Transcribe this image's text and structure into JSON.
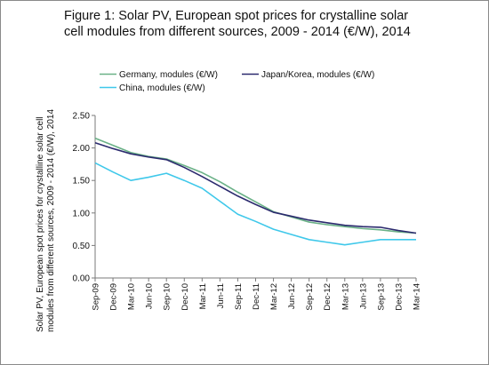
{
  "chart_data": {
    "type": "line",
    "title_lines": [
      "Figure 1: Solar PV, European spot prices for crystalline solar",
      "cell modules from different sources, 2009 - 2014 (€/W), 2014"
    ],
    "ylabel_lines": [
      "Solar PV, European spot prices for crystalline solar cell",
      "modules from different sources, 2009 - 2014 (€/W), 2014"
    ],
    "categories": [
      "Sep-09",
      "Dec-09",
      "Mar-10",
      "Jun-10",
      "Sep-10",
      "Dec-10",
      "Mar-11",
      "Jun-11",
      "Sep-11",
      "Dec-11",
      "Mar-12",
      "Jun-12",
      "Sep-12",
      "Dec-12",
      "Mar-13",
      "Jun-13",
      "Sep-13",
      "Dec-13",
      "Mar-14"
    ],
    "ylim": [
      0,
      2.5
    ],
    "yticks": [
      "0.00",
      "0.50",
      "1.00",
      "1.50",
      "2.00",
      "2.50"
    ],
    "grid": false,
    "legend_position": "top",
    "series": [
      {
        "name": "Germany, modules (€/W)",
        "color": "#6ab187",
        "values": [
          2.15,
          2.04,
          1.93,
          1.87,
          1.83,
          1.73,
          1.62,
          1.48,
          1.32,
          1.17,
          1.02,
          0.94,
          0.86,
          0.82,
          0.79,
          0.76,
          0.74,
          0.71,
          0.69
        ]
      },
      {
        "name": "Japan/Korea, modules (€/W)",
        "color": "#2b2a6e",
        "values": [
          2.08,
          1.99,
          1.91,
          1.86,
          1.82,
          1.7,
          1.56,
          1.41,
          1.26,
          1.13,
          1.01,
          0.95,
          0.89,
          0.85,
          0.81,
          0.79,
          0.78,
          0.73,
          0.69
        ]
      },
      {
        "name": "China, modules (€/W)",
        "color": "#3fc8ea",
        "values": [
          1.77,
          1.63,
          1.5,
          1.55,
          1.61,
          1.5,
          1.38,
          1.18,
          0.98,
          0.87,
          0.75,
          0.67,
          0.59,
          0.55,
          0.51,
          0.55,
          0.59,
          0.59,
          0.59
        ]
      }
    ]
  }
}
